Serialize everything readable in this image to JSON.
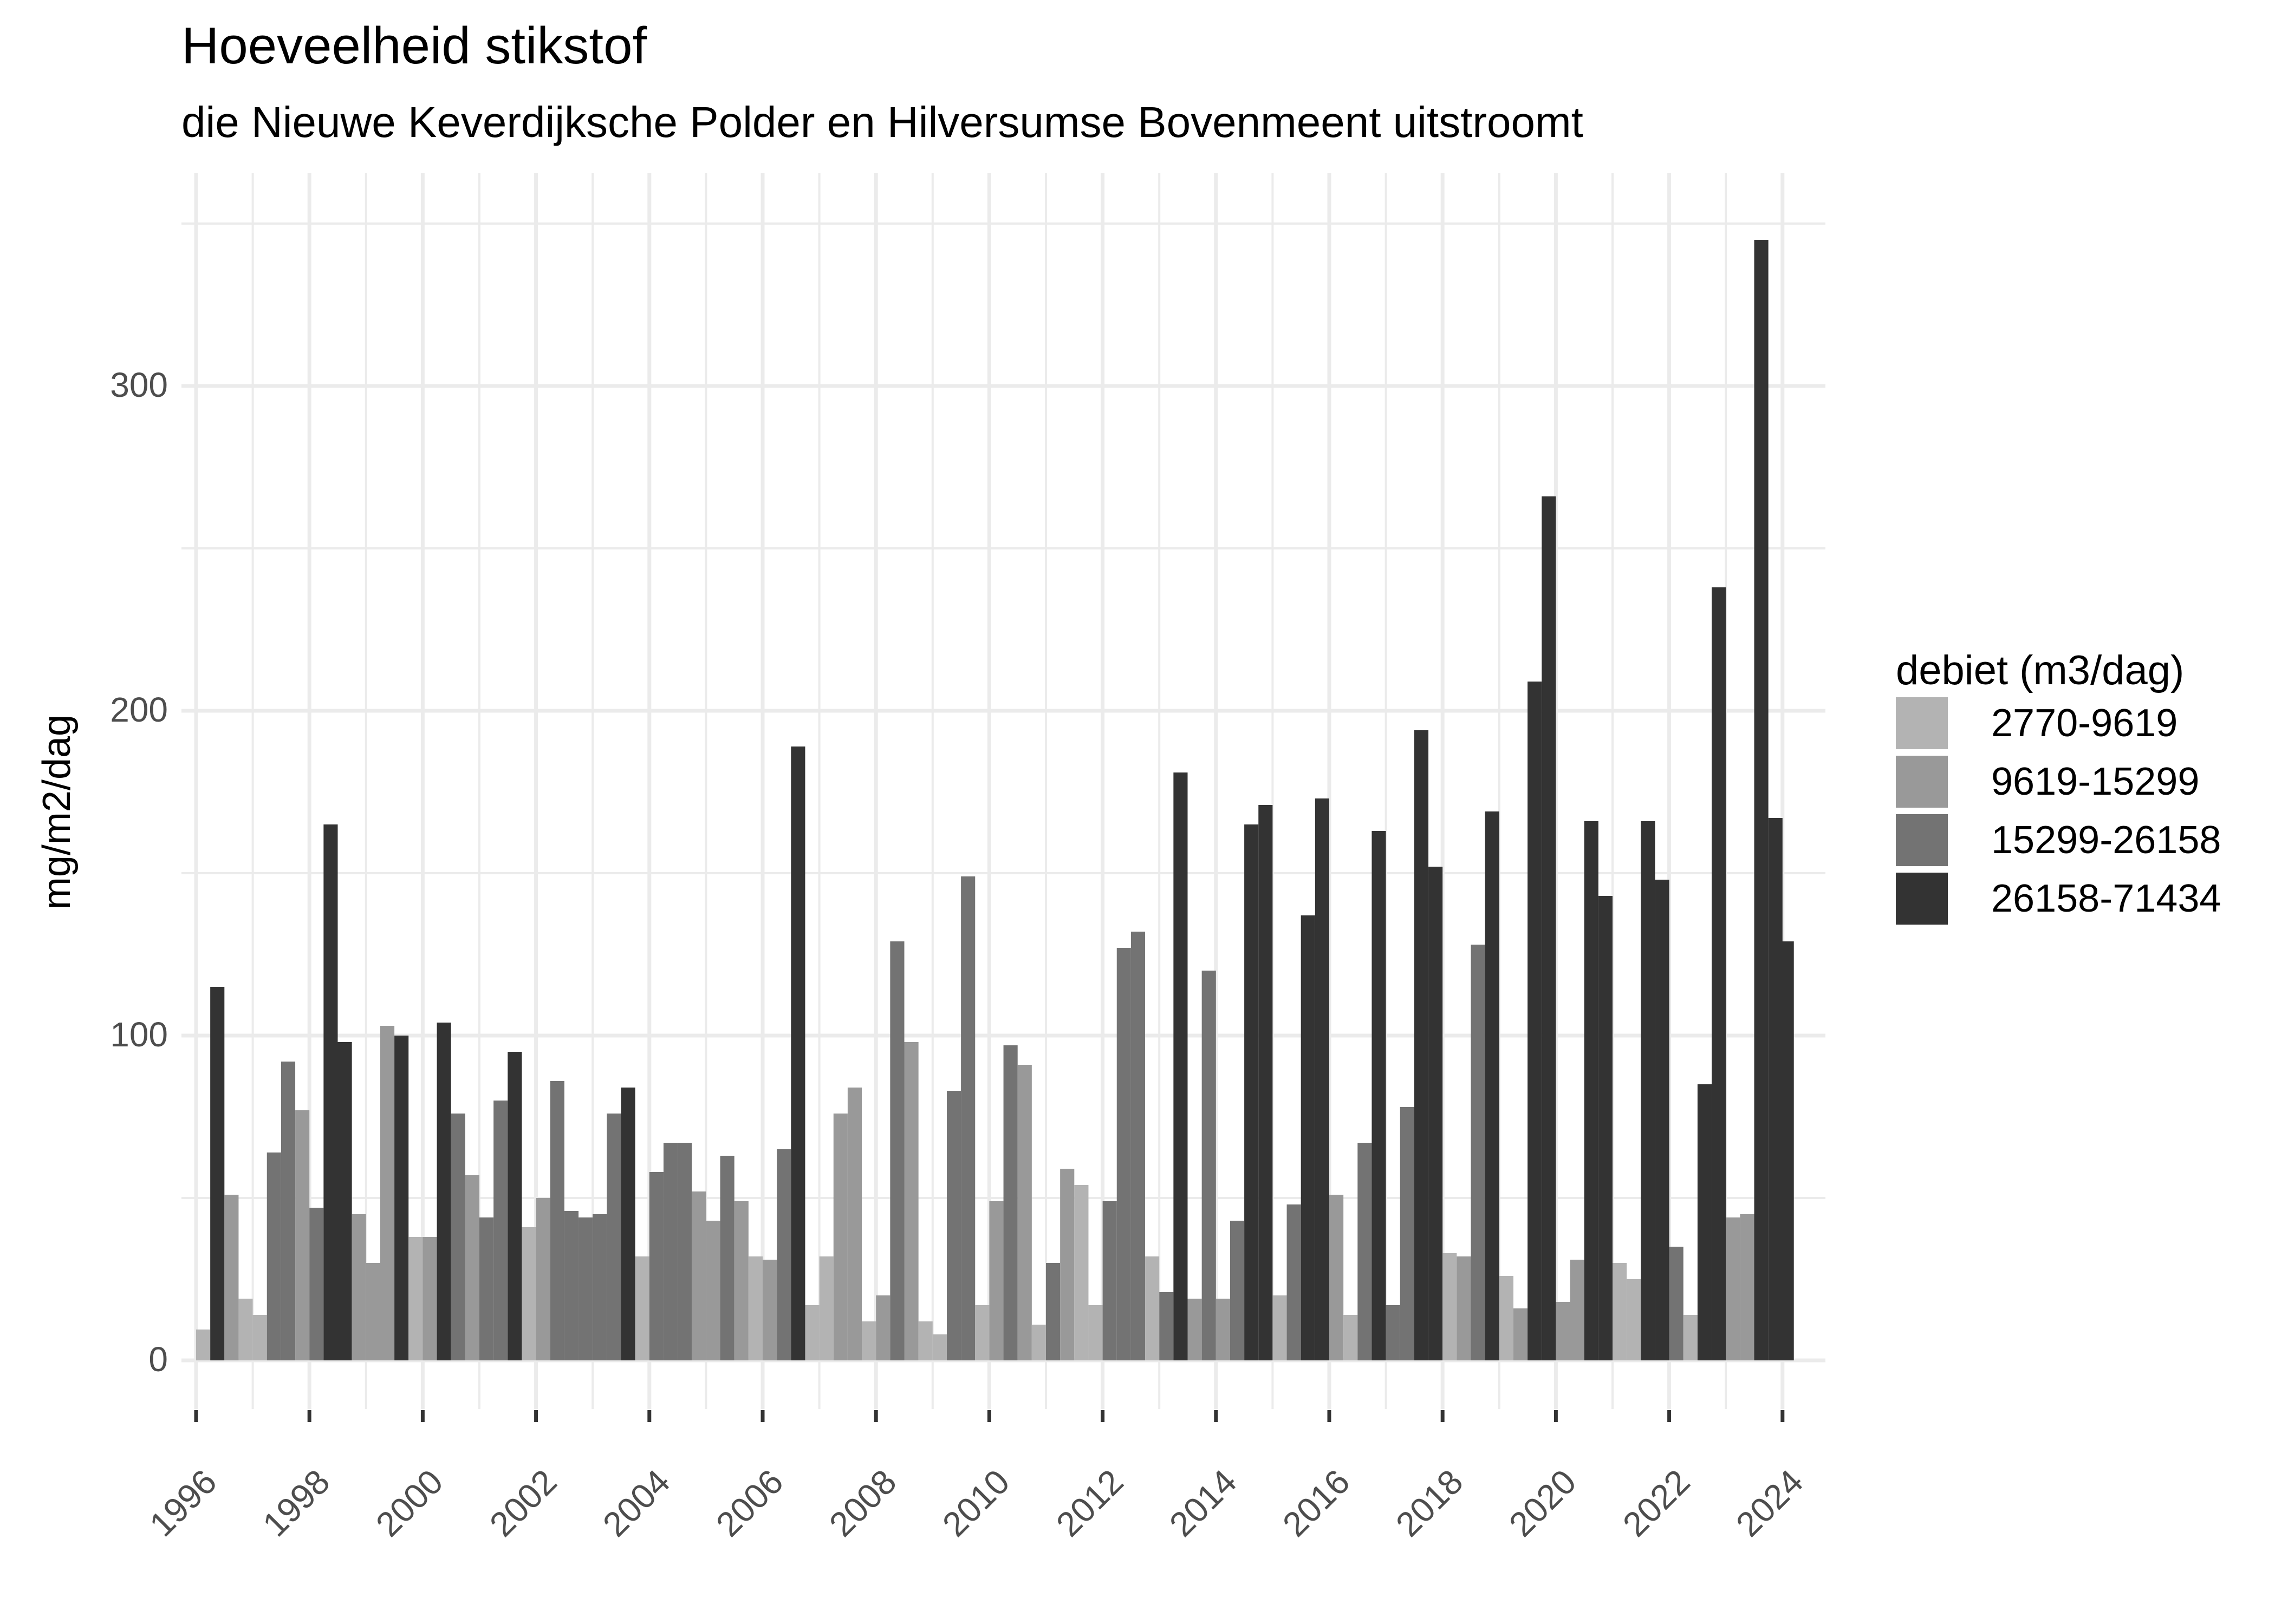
{
  "title": "Hoeveelheid stikstof",
  "subtitle": "die Nieuwe Keverdijksche Polder en Hilversumse Bovenmeent uitstroomt",
  "y_axis_label": "mg/m2/dag",
  "legend": {
    "title": "debiet (m3/dag)",
    "items": [
      {
        "label": "2770-9619",
        "color": "#B3B3B3"
      },
      {
        "label": "9619-15299",
        "color": "#999999"
      },
      {
        "label": "15299-26158",
        "color": "#737373"
      },
      {
        "label": "26158-71434",
        "color": "#333333"
      }
    ]
  },
  "chart_data": {
    "type": "bar",
    "title": "Hoeveelheid stikstof",
    "subtitle": "die Nieuwe Keverdijksche Polder en Hilversumse Bovenmeent uitstroomt",
    "xlabel": "",
    "ylabel": "mg/m2/dag",
    "ylim": [
      -15,
      355
    ],
    "xlim": [
      1996,
      2024
    ],
    "y_ticks": [
      0,
      100,
      200,
      300
    ],
    "x_ticks": [
      "1996",
      "1998",
      "2000",
      "2002",
      "2004",
      "2006",
      "2008",
      "2010",
      "2012",
      "2014",
      "2016",
      "2018",
      "2020",
      "2022",
      "2024"
    ],
    "x_tick_rotation": 45,
    "grid": true,
    "legend_position": "right",
    "legend_title": "debiet (m3/dag)",
    "fill_categories": [
      "2770-9619",
      "9619-15299",
      "15299-26158",
      "26158-71434"
    ],
    "fill_colors": [
      "#B3B3B3",
      "#999999",
      "#737373",
      "#333333"
    ],
    "bar_unit": "quarter",
    "x": [
      1996.0,
      1996.25,
      1996.5,
      1996.75,
      1997.0,
      1997.25,
      1997.5,
      1997.75,
      1998.0,
      1998.25,
      1998.5,
      1998.75,
      1999.0,
      1999.25,
      1999.5,
      1999.75,
      2000.0,
      2000.25,
      2000.5,
      2000.75,
      2001.0,
      2001.25,
      2001.5,
      2001.75,
      2002.0,
      2002.25,
      2002.5,
      2002.75,
      2003.0,
      2003.25,
      2003.5,
      2003.75,
      2004.0,
      2004.25,
      2004.5,
      2004.75,
      2005.0,
      2005.25,
      2005.5,
      2005.75,
      2006.0,
      2006.25,
      2006.5,
      2006.75,
      2007.0,
      2007.25,
      2007.5,
      2007.75,
      2008.0,
      2008.25,
      2008.5,
      2008.75,
      2009.0,
      2009.25,
      2009.5,
      2009.75,
      2010.0,
      2010.25,
      2010.5,
      2010.75,
      2011.0,
      2011.25,
      2011.5,
      2011.75,
      2012.0,
      2012.25,
      2012.5,
      2012.75,
      2013.0,
      2013.25,
      2013.5,
      2013.75,
      2014.0,
      2014.25,
      2014.5,
      2014.75,
      2015.0,
      2015.25,
      2015.5,
      2015.75,
      2016.0,
      2016.25,
      2016.5,
      2016.75,
      2017.0,
      2017.25,
      2017.5,
      2017.75,
      2018.0,
      2018.25,
      2018.5,
      2018.75,
      2019.0,
      2019.25,
      2019.5,
      2019.75,
      2020.0,
      2020.25,
      2020.5,
      2020.75,
      2021.0,
      2021.25,
      2021.5,
      2021.75,
      2022.0,
      2022.25,
      2022.5,
      2022.75,
      2023.0,
      2023.25,
      2023.5,
      2023.75,
      2023.95
    ],
    "values": [
      9.5,
      115,
      51,
      19,
      14,
      64,
      92,
      77,
      47,
      165,
      98,
      45,
      30,
      103,
      100,
      38,
      38,
      104,
      76,
      57,
      44,
      80,
      95,
      41,
      50,
      86,
      46,
      44,
      45,
      76,
      84,
      32,
      58,
      67,
      67,
      52,
      43,
      63,
      49,
      32,
      31,
      65,
      189,
      17,
      32,
      76,
      84,
      12,
      20,
      129,
      98,
      12,
      8,
      83,
      149,
      17,
      49,
      97,
      91,
      11,
      30,
      59,
      54,
      17,
      49,
      127,
      132,
      32,
      21,
      181,
      19,
      120,
      19,
      43,
      165,
      171,
      20,
      48,
      137,
      173,
      51,
      14,
      67,
      163,
      17,
      78,
      194,
      152,
      33,
      32,
      128,
      169,
      26,
      16,
      209,
      266,
      18,
      31,
      166,
      143,
      30,
      25,
      166,
      148,
      35,
      14,
      85,
      238,
      44,
      45,
      345,
      167,
      129
    ],
    "category_index": [
      0,
      3,
      1,
      0,
      0,
      2,
      2,
      1,
      2,
      3,
      3,
      1,
      1,
      1,
      3,
      0,
      1,
      3,
      2,
      1,
      2,
      2,
      3,
      0,
      1,
      2,
      2,
      2,
      2,
      2,
      3,
      0,
      2,
      2,
      2,
      1,
      1,
      2,
      1,
      0,
      1,
      2,
      3,
      0,
      0,
      1,
      1,
      0,
      1,
      2,
      1,
      0,
      0,
      2,
      2,
      0,
      1,
      2,
      1,
      0,
      2,
      1,
      0,
      0,
      2,
      2,
      2,
      0,
      2,
      3,
      1,
      2,
      1,
      2,
      3,
      3,
      0,
      2,
      3,
      3,
      1,
      0,
      2,
      3,
      2,
      2,
      3,
      3,
      0,
      1,
      2,
      3,
      0,
      1,
      3,
      3,
      1,
      1,
      3,
      3,
      0,
      0,
      3,
      3,
      2,
      0,
      3,
      3,
      1,
      1,
      3,
      3,
      3
    ]
  }
}
